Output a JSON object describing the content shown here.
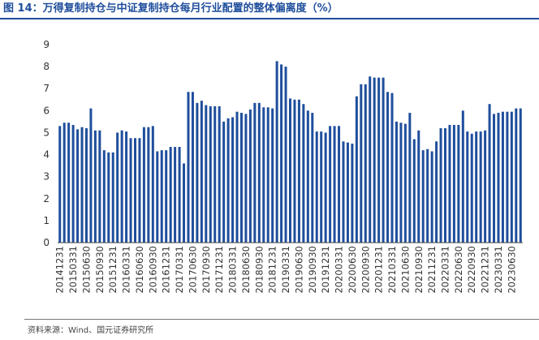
{
  "figure": {
    "title": "图 14：万得复制持仓与中证复制持仓每月行业配置的整体偏离度（%）",
    "source": "资料来源：Wind、国元证券研究所"
  },
  "chart_data": {
    "type": "bar",
    "title": "",
    "xlabel": "",
    "ylabel": "",
    "ylim": [
      0,
      9
    ],
    "yticks": [
      0,
      1,
      2,
      3,
      4,
      5,
      6,
      7,
      8,
      9
    ],
    "grid": false,
    "legend": "none",
    "bar_color": "#1f4e9c",
    "tick_labels": [
      "20141231",
      "20150331",
      "20150630",
      "20150930",
      "20151231",
      "20160331",
      "20160630",
      "20160930",
      "20161231",
      "20170331",
      "20170630",
      "20170930",
      "20171231",
      "20180331",
      "20180630",
      "20180930",
      "20181231",
      "20190331",
      "20190630",
      "20190930",
      "20191231",
      "20200331",
      "20200630",
      "20200930",
      "20201231",
      "20210331",
      "20210630",
      "20210930",
      "20211231",
      "20220331",
      "20220630",
      "20220930",
      "20221231",
      "20230331",
      "20230630"
    ],
    "values": [
      5.3,
      5.45,
      5.45,
      5.35,
      5.15,
      5.25,
      5.2,
      6.1,
      5.1,
      5.1,
      4.2,
      4.1,
      4.1,
      5.0,
      5.1,
      5.05,
      4.75,
      4.75,
      4.75,
      5.25,
      5.25,
      5.3,
      4.15,
      4.2,
      4.2,
      4.35,
      4.35,
      4.35,
      3.6,
      6.85,
      6.85,
      6.35,
      6.45,
      6.25,
      6.2,
      6.2,
      6.2,
      5.5,
      5.65,
      5.7,
      5.95,
      5.9,
      5.85,
      6.05,
      6.35,
      6.35,
      6.15,
      6.15,
      6.1,
      8.25,
      8.1,
      8.0,
      6.55,
      6.5,
      6.5,
      6.3,
      6.0,
      5.9,
      5.05,
      5.05,
      5.0,
      5.3,
      5.3,
      5.3,
      4.6,
      4.55,
      4.5,
      6.65,
      7.2,
      7.2,
      7.55,
      7.5,
      7.5,
      7.5,
      6.85,
      6.8,
      5.5,
      5.45,
      5.4,
      5.9,
      4.7,
      5.1,
      4.2,
      4.25,
      4.15,
      4.6,
      5.2,
      5.2,
      5.35,
      5.35,
      5.35,
      6.0,
      5.05,
      4.95,
      5.05,
      5.05,
      5.1,
      6.3,
      5.85,
      5.9,
      5.95,
      5.95,
      5.95,
      6.1,
      6.1
    ]
  }
}
